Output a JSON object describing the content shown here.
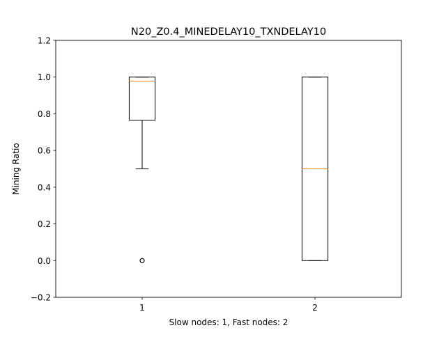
{
  "chart_data": {
    "type": "box",
    "title": "N20_Z0.4_MINEDELAY10_TXNDELAY10",
    "xlabel": "Slow nodes: 1, Fast nodes: 2",
    "ylabel": "Mining Ratio",
    "ylim": [
      -0.2,
      1.2
    ],
    "yticks": [
      -0.2,
      0.0,
      0.2,
      0.4,
      0.6,
      0.8,
      1.0,
      1.2
    ],
    "ytick_labels": [
      "−0.2",
      "0.0",
      "0.2",
      "0.4",
      "0.6",
      "0.8",
      "1.0",
      "1.2"
    ],
    "xlim": [
      0.5,
      2.5
    ],
    "categories": [
      "1",
      "2"
    ],
    "boxes": [
      {
        "category": "1",
        "whisker_low": 0.5,
        "q1": 0.765,
        "median": 0.978,
        "q3": 1.0,
        "whisker_high": 1.0,
        "outliers": [
          0.0,
          0.0
        ]
      },
      {
        "category": "2",
        "whisker_low": 0.0,
        "q1": 0.0,
        "median": 0.5,
        "q3": 1.0,
        "whisker_high": 1.0,
        "outliers": []
      }
    ],
    "colors": {
      "box": "#000000",
      "median": "#ff7f0e",
      "axes": "#000000"
    },
    "grid": false
  }
}
